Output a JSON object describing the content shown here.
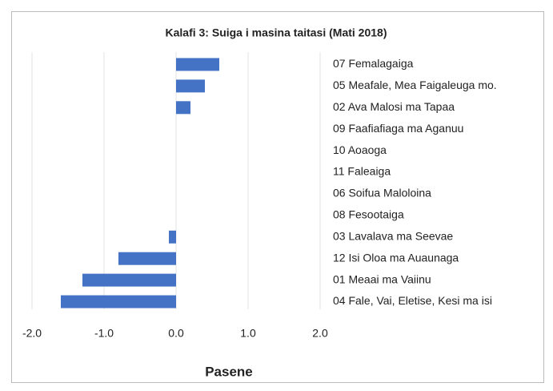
{
  "chart_data": {
    "type": "bar",
    "orientation": "horizontal",
    "title": "Kalafi 3: Suiga i masina taitasi  (Mati 2018)",
    "x_label": "Pasene",
    "categories": [
      "07 Femalagaiga",
      "05 Meafale, Mea Faigaleuga mo.",
      "02 Ava Malosi ma Tapaa",
      "09 Faafiafiaga ma Aganuu",
      "10 Aoaoga",
      "11 Faleaiga",
      "06 Soifua Maloloina",
      "08 Fesootaiga",
      "03 Lavalava ma Seevae",
      "12 Isi Oloa ma Auaunaga",
      "01 Meaai ma Vaiinu",
      "04 Fale, Vai, Eletise, Kesi ma isi"
    ],
    "values": [
      0.6,
      0.4,
      0.2,
      0,
      0,
      0,
      0,
      0,
      -0.1,
      -0.8,
      -1.3,
      -1.6
    ],
    "color": "#4472c4",
    "xlim": [
      -2,
      2
    ],
    "xticks": [
      {
        "value": -2,
        "label": "-2.0"
      },
      {
        "value": -1,
        "label": "-1.0"
      },
      {
        "value": 0,
        "label": "0.0"
      },
      {
        "value": 1,
        "label": "1.0"
      },
      {
        "value": 2,
        "label": "2.0"
      }
    ],
    "grid": true
  }
}
